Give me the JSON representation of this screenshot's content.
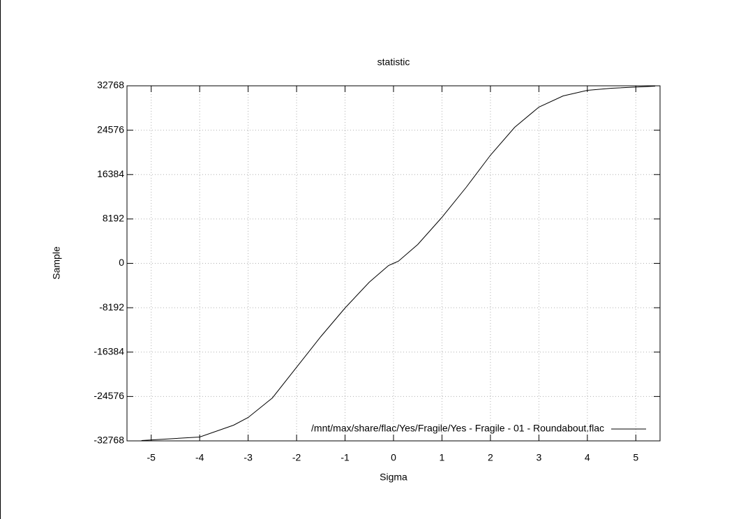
{
  "chart_data": {
    "type": "line",
    "title": "statistic",
    "x_label": "Sigma",
    "y_label": "Sample",
    "x": [
      -5.2,
      -4,
      -3.3,
      -3,
      -2.5,
      -2,
      -1.5,
      -1,
      -0.5,
      -0.1,
      0,
      0.1,
      0.5,
      1,
      1.5,
      2,
      2.5,
      3,
      3.5,
      4,
      4.5,
      5.4
    ],
    "series": [
      {
        "name": "/mnt/max/share/flac/Yes/Fragile/Yes - Fragile - 01 - Roundabout.flac",
        "color": "#000000",
        "values": [
          -32700,
          -32059,
          -29870,
          -28454,
          -24849,
          -19184,
          -13519,
          -8240,
          -3476,
          -386,
          0,
          386,
          3476,
          8497,
          14034,
          19956,
          25106,
          28840,
          30900,
          31930,
          32316,
          32700
        ]
      }
    ],
    "xlim": [
      -5.5,
      5.5
    ],
    "xticks": [
      -5,
      -4,
      -3,
      -2,
      -1,
      0,
      1,
      2,
      3,
      4,
      5
    ],
    "ylim": [
      -32768,
      32768
    ],
    "yticks": [
      -32768,
      -24576,
      -16384,
      -8192,
      0,
      8192,
      16384,
      24576,
      32768
    ],
    "grid": true,
    "legend": "bottom-right"
  }
}
